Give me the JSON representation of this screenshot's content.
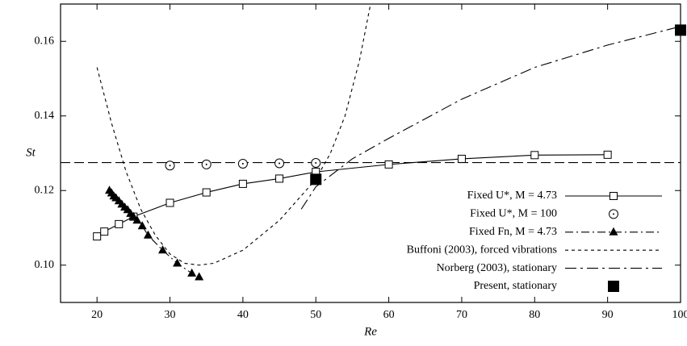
{
  "chart_data": {
    "type": "line",
    "xlabel": "Re",
    "ylabel": "St",
    "xlim": [
      15,
      100
    ],
    "ylim": [
      0.09,
      0.17
    ],
    "xticks": [
      20,
      30,
      40,
      50,
      60,
      70,
      80,
      90,
      100
    ],
    "yticks": [
      {
        "value": 0.1,
        "label": "0.10"
      },
      0.12,
      0.14,
      0.16
    ],
    "reference_line": {
      "y": 0.1275,
      "color": "#000000"
    },
    "legend": "lower right",
    "series": [
      {
        "name": "Fixed U*, M = 4.73",
        "color": "#000000",
        "line": "solid",
        "marker": "open-square",
        "x": [
          20,
          21,
          23,
          25,
          30,
          35,
          40,
          45,
          50,
          60,
          70,
          80,
          90
        ],
        "values": [
          0.1077,
          0.109,
          0.111,
          0.113,
          0.1167,
          0.1195,
          0.1218,
          0.1232,
          0.125,
          0.127,
          0.1285,
          0.1295,
          0.1296
        ]
      },
      {
        "name": "Fixed U*, M = 100",
        "color": "#000000",
        "line": "none",
        "marker": "open-circle",
        "x": [
          30,
          35,
          40,
          45,
          50
        ],
        "values": [
          0.1267,
          0.127,
          0.1272,
          0.1273,
          0.1274
        ]
      },
      {
        "name": "Fixed Fn, M = 4.73",
        "color": "#000000",
        "line": "dashdot",
        "marker": "filled-triangle",
        "x": [
          21.7,
          22,
          22.3,
          22.6,
          23,
          23.4,
          23.8,
          24.2,
          24.6,
          25,
          25.5,
          26.2,
          27,
          29,
          31,
          33,
          34
        ],
        "values": [
          0.12,
          0.1193,
          0.1185,
          0.118,
          0.1172,
          0.1163,
          0.1155,
          0.1148,
          0.1138,
          0.113,
          0.112,
          0.1105,
          0.108,
          0.104,
          0.1005,
          0.0978,
          0.0968
        ]
      },
      {
        "name": "Buffoni (2003), forced vibrations",
        "color": "#000000",
        "line": "dashed",
        "marker": "none",
        "x": [
          20,
          22,
          24,
          26,
          28,
          30,
          32,
          34,
          36,
          40,
          45,
          50,
          52,
          54,
          56,
          57.5
        ],
        "values": [
          0.153,
          0.138,
          0.125,
          0.115,
          0.108,
          0.103,
          0.1005,
          0.1,
          0.1005,
          0.104,
          0.112,
          0.123,
          0.13,
          0.14,
          0.155,
          0.17
        ]
      },
      {
        "name": "Norberg (2003), stationary",
        "color": "#000000",
        "line": "longdashdot",
        "marker": "none",
        "x": [
          48,
          50,
          55,
          60,
          70,
          80,
          90,
          100
        ],
        "values": [
          0.115,
          0.121,
          0.1285,
          0.134,
          0.1445,
          0.153,
          0.159,
          0.164
        ]
      },
      {
        "name": "Present, stationary",
        "color": "#000000",
        "line": "none",
        "marker": "filled-square",
        "x": [
          50,
          100
        ],
        "values": [
          0.123,
          0.163
        ]
      }
    ]
  }
}
